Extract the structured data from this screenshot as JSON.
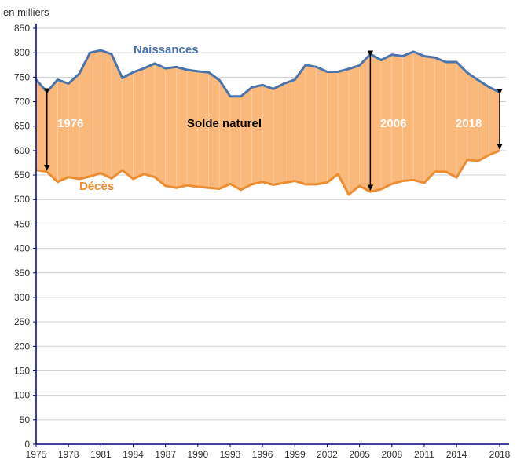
{
  "chart_data": {
    "type": "area",
    "title": "",
    "ylabel": "en milliers",
    "xlabel": "",
    "ylim": [
      0,
      850
    ],
    "xlim": [
      1975,
      2018
    ],
    "yticks": [
      0,
      50,
      100,
      150,
      200,
      250,
      300,
      350,
      400,
      450,
      500,
      550,
      600,
      650,
      700,
      750,
      800,
      850
    ],
    "xticks": [
      1975,
      1978,
      1981,
      1984,
      1987,
      1990,
      1993,
      1996,
      1999,
      2002,
      2005,
      2008,
      2011,
      2014,
      2018
    ],
    "grid": true,
    "years": [
      1975,
      1976,
      1977,
      1978,
      1979,
      1980,
      1981,
      1982,
      1983,
      1984,
      1985,
      1986,
      1987,
      1988,
      1989,
      1990,
      1991,
      1992,
      1993,
      1994,
      1995,
      1996,
      1997,
      1998,
      1999,
      2000,
      2001,
      2002,
      2003,
      2004,
      2005,
      2006,
      2007,
      2008,
      2009,
      2010,
      2011,
      2012,
      2013,
      2014,
      2015,
      2016,
      2017,
      2018
    ],
    "series": [
      {
        "name": "Naissances",
        "color": "#4a74ad",
        "values": [
          745,
          720,
          745,
          737,
          757,
          800,
          805,
          797,
          748,
          760,
          768,
          778,
          768,
          771,
          765,
          762,
          760,
          744,
          711,
          711,
          729,
          734,
          726,
          737,
          745,
          775,
          771,
          761,
          761,
          767,
          774,
          797,
          785,
          796,
          793,
          802,
          793,
          790,
          781,
          781,
          759,
          744,
          730,
          719
        ]
      },
      {
        "name": "Décès",
        "color": "#ec8d31",
        "values": [
          560,
          557,
          536,
          546,
          542,
          547,
          554,
          543,
          560,
          542,
          552,
          546,
          528,
          524,
          529,
          526,
          524,
          522,
          532,
          520,
          531,
          536,
          530,
          534,
          538,
          531,
          531,
          535,
          552,
          510,
          528,
          516,
          521,
          532,
          538,
          540,
          534,
          557,
          557,
          545,
          581,
          579,
          591,
          600
        ]
      }
    ],
    "area_fill": "#fab87a",
    "annotations": {
      "naissances_label": "Naissances",
      "deces_label": "Décès",
      "solde_label": "Solde naturel",
      "year_1976": "1976",
      "year_2006": "2006",
      "year_2018": "2018"
    },
    "arrows": [
      {
        "label": "1976",
        "year": 1976,
        "from": 720,
        "to": 557
      },
      {
        "label": "2006",
        "year": 2006,
        "from": 797,
        "to": 516
      },
      {
        "label": "2018",
        "year": 2018,
        "from": 719,
        "to": 600
      }
    ]
  }
}
